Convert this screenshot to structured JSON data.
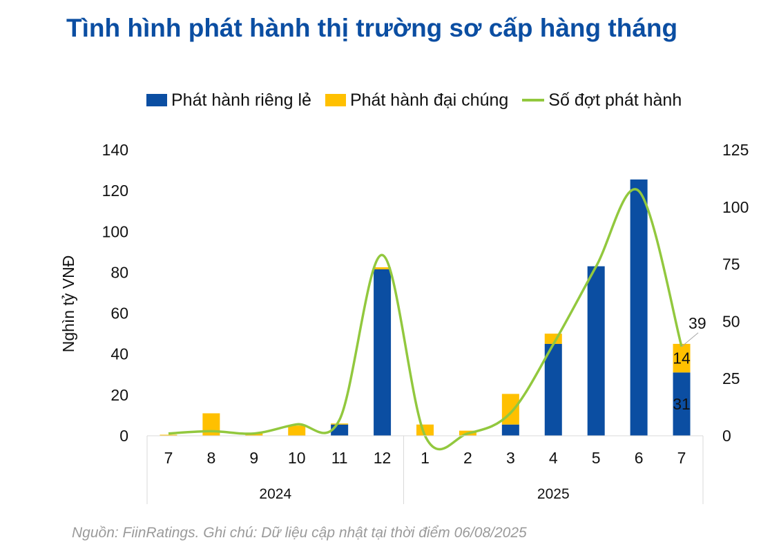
{
  "title": "Tình hình phát hành thị trường sơ cấp hàng tháng",
  "source": "Nguồn: FiinRatings. Ghi chú: Dữ liệu cập nhật tại thời điểm 06/08/2025",
  "legend": {
    "private": "Phát hành riêng lẻ",
    "public": "Phát hành đại chúng",
    "count": "Số đợt phát hành"
  },
  "colors": {
    "private": "#0b4ea2",
    "public": "#ffc000",
    "count": "#92c83e",
    "title": "#0b4ea2"
  },
  "chart_data": {
    "type": "bar",
    "stacked": true,
    "title": "Tình hình phát hành thị trường sơ cấp hàng tháng",
    "ylabel": "Nghìn tỷ VNĐ",
    "y2label": "",
    "ylim": [
      0,
      140
    ],
    "y2lim": [
      0,
      125
    ],
    "yticks": [
      "0",
      "20",
      "40",
      "60",
      "80",
      "100",
      "120",
      "140"
    ],
    "y2ticks": [
      "0",
      "25",
      "50",
      "75",
      "100",
      "125"
    ],
    "categories": [
      "7",
      "8",
      "9",
      "10",
      "11",
      "12",
      "1",
      "2",
      "3",
      "4",
      "5",
      "6",
      "7"
    ],
    "groups": [
      {
        "label": "2024",
        "start": 0,
        "end": 5
      },
      {
        "label": "2025",
        "start": 6,
        "end": 12
      }
    ],
    "series": [
      {
        "name": "Phát hành riêng lẻ",
        "kind": "bar",
        "axis": "left",
        "values": [
          0,
          0,
          0,
          0,
          5.5,
          81.5,
          0,
          0,
          5.5,
          45,
          83,
          125.5,
          31
        ]
      },
      {
        "name": "Phát hành đại chúng",
        "kind": "bar",
        "axis": "left",
        "values": [
          0.5,
          11,
          1.5,
          5,
          0.5,
          1,
          5.5,
          2.5,
          15,
          5,
          0,
          0,
          14
        ]
      },
      {
        "name": "Số đợt phát hành",
        "kind": "line",
        "smooth": true,
        "axis": "right",
        "values": [
          1,
          2,
          1,
          5,
          7,
          79,
          0,
          1,
          10,
          40,
          74,
          107,
          39
        ]
      }
    ],
    "data_labels": {
      "private_last": "31",
      "public_last": "14",
      "count_last": "39"
    },
    "grid": false,
    "legend": "top"
  }
}
